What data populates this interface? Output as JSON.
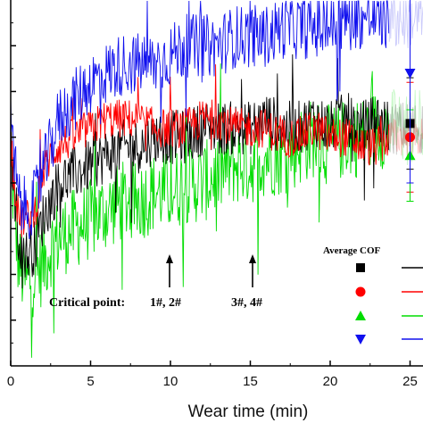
{
  "chart_data": {
    "type": "line",
    "title": "",
    "xlabel": "Wear time (min)",
    "ylabel": "",
    "xlim": [
      0,
      26.5
    ],
    "x_ticks": [
      "0",
      "5",
      "10",
      "15",
      "20",
      "25"
    ],
    "grid": false,
    "series": [
      {
        "key": "s1",
        "color": "#000000",
        "marker": "square",
        "x": [
          0,
          0.5,
          1,
          1.5,
          2,
          2.5,
          3,
          4,
          5,
          6,
          7,
          8,
          9,
          10,
          11,
          12,
          13,
          14,
          15,
          16,
          17,
          18,
          19,
          20,
          21,
          22,
          23,
          23.7
        ],
        "y": [
          0.44,
          0.34,
          0.32,
          0.33,
          0.36,
          0.38,
          0.4,
          0.41,
          0.42,
          0.43,
          0.44,
          0.44,
          0.45,
          0.45,
          0.45,
          0.46,
          0.46,
          0.46,
          0.46,
          0.47,
          0.46,
          0.46,
          0.47,
          0.46,
          0.47,
          0.46,
          0.47,
          0.46
        ]
      },
      {
        "key": "s2",
        "color": "#ff0000",
        "marker": "circle",
        "x": [
          0,
          0.5,
          1,
          1.5,
          2,
          2.5,
          3,
          4,
          5,
          6,
          7,
          8,
          9,
          10,
          11,
          12,
          13,
          14,
          15,
          16,
          17,
          18,
          19,
          20,
          21,
          22,
          23,
          23.7
        ],
        "y": [
          0.44,
          0.36,
          0.36,
          0.37,
          0.41,
          0.43,
          0.44,
          0.45,
          0.46,
          0.47,
          0.47,
          0.47,
          0.46,
          0.46,
          0.46,
          0.47,
          0.47,
          0.46,
          0.46,
          0.46,
          0.45,
          0.45,
          0.46,
          0.45,
          0.45,
          0.44,
          0.44,
          0.45
        ]
      },
      {
        "key": "s3",
        "color": "#00dd00",
        "marker": "triangle-up",
        "x": [
          0,
          0.5,
          1,
          1.5,
          2,
          2.5,
          3,
          4,
          5,
          6,
          7,
          8,
          9,
          10,
          11,
          12,
          13,
          14,
          15,
          16,
          17,
          18,
          19,
          20,
          21,
          22,
          23,
          23.7
        ],
        "y": [
          0.42,
          0.31,
          0.29,
          0.3,
          0.31,
          0.33,
          0.34,
          0.35,
          0.36,
          0.37,
          0.38,
          0.38,
          0.39,
          0.39,
          0.4,
          0.4,
          0.41,
          0.42,
          0.42,
          0.43,
          0.43,
          0.44,
          0.45,
          0.44,
          0.45,
          0.45,
          0.46,
          0.46
        ]
      },
      {
        "key": "s4",
        "color": "#1010ee",
        "marker": "triangle-down",
        "x": [
          0,
          0.5,
          1,
          1.5,
          2,
          2.5,
          3,
          4,
          5,
          6,
          7,
          8,
          9,
          10,
          11,
          12,
          13,
          14,
          15,
          16,
          17,
          18,
          19,
          20,
          21,
          22,
          23,
          23.7
        ],
        "y": [
          0.46,
          0.38,
          0.37,
          0.38,
          0.41,
          0.44,
          0.47,
          0.49,
          0.51,
          0.52,
          0.53,
          0.53,
          0.53,
          0.54,
          0.55,
          0.55,
          0.55,
          0.56,
          0.56,
          0.56,
          0.57,
          0.57,
          0.57,
          0.57,
          0.58,
          0.58,
          0.58,
          0.58
        ]
      }
    ],
    "average_cof": [
      {
        "series": "s1",
        "x": 25,
        "y": 0.465,
        "error": 0.05
      },
      {
        "series": "s2",
        "x": 25,
        "y": 0.45,
        "error": 0.06
      },
      {
        "series": "s3",
        "x": 25,
        "y": 0.43,
        "error": 0.05
      },
      {
        "series": "s4",
        "x": 25,
        "y": 0.52,
        "error": 0.12
      }
    ],
    "arrows": [
      {
        "x": 10,
        "label": ""
      },
      {
        "x": 15.5,
        "label": ""
      }
    ]
  },
  "legend": {
    "title": "Average COF",
    "placement": "bottom-right"
  },
  "annotation": {
    "critical_label": "Critical point:",
    "group1": "1#, 2#",
    "group2": "3#, 4#"
  }
}
